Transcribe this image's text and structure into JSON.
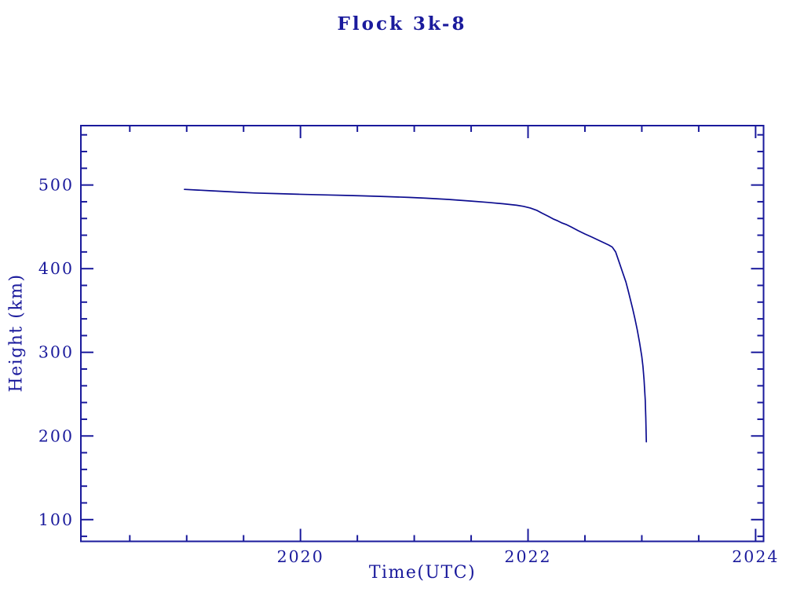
{
  "title": "Flock 3k-8",
  "colors": {
    "axis": "#1a1a9c",
    "text": "#1a1a9c",
    "line": "#0d0d90",
    "background": "#ffffff"
  },
  "chart_data": {
    "type": "line",
    "title": "Flock 3k-8",
    "xlabel": "Time(UTC)",
    "ylabel": "Height (km)",
    "xlim": [
      2018.07,
      2024.07
    ],
    "ylim": [
      74,
      571
    ],
    "x_major_ticks": [
      2020,
      2022,
      2024
    ],
    "x_minor_step": 0.5,
    "y_major_ticks": [
      100,
      200,
      300,
      400,
      500
    ],
    "y_minor_step": 20,
    "grid": false,
    "legend": "none",
    "axes_style": "box-with-mirrored-inward-ticks",
    "series": [
      {
        "name": "Flock 3k-8 orbital height",
        "points": [
          [
            2018.98,
            494.8
          ],
          [
            2019.1,
            493.9
          ],
          [
            2019.2,
            493.2
          ],
          [
            2019.3,
            492.5
          ],
          [
            2019.43,
            491.6
          ],
          [
            2019.6,
            490.5
          ],
          [
            2019.8,
            489.7
          ],
          [
            2019.98,
            489.0
          ],
          [
            2020.2,
            488.2
          ],
          [
            2020.4,
            487.6
          ],
          [
            2020.53,
            487.1
          ],
          [
            2020.7,
            486.4
          ],
          [
            2020.95,
            485.2
          ],
          [
            2021.1,
            484.3
          ],
          [
            2021.3,
            482.8
          ],
          [
            2021.5,
            480.8
          ],
          [
            2021.65,
            479.2
          ],
          [
            2021.78,
            477.6
          ],
          [
            2021.9,
            475.8
          ],
          [
            2021.96,
            474.5
          ],
          [
            2022.02,
            472.5
          ],
          [
            2022.08,
            469.5
          ],
          [
            2022.12,
            466.5
          ],
          [
            2022.18,
            462.5
          ],
          [
            2022.22,
            459.5
          ],
          [
            2022.26,
            457.2
          ],
          [
            2022.3,
            454.5
          ],
          [
            2022.34,
            452.5
          ],
          [
            2022.38,
            449.8
          ],
          [
            2022.44,
            445.5
          ],
          [
            2022.5,
            441.5
          ],
          [
            2022.56,
            437.8
          ],
          [
            2022.62,
            434.0
          ],
          [
            2022.67,
            430.8
          ],
          [
            2022.71,
            428.2
          ],
          [
            2022.74,
            425.8
          ],
          [
            2022.77,
            420.0
          ],
          [
            2022.8,
            408.0
          ],
          [
            2022.83,
            396.0
          ],
          [
            2022.86,
            384.0
          ],
          [
            2022.88,
            374.0
          ],
          [
            2022.9,
            363.0
          ],
          [
            2022.92,
            352.0
          ],
          [
            2022.94,
            340.0
          ],
          [
            2022.96,
            327.0
          ],
          [
            2022.98,
            312.0
          ],
          [
            2023.0,
            295.0
          ],
          [
            2023.01,
            283.0
          ],
          [
            2023.02,
            267.0
          ],
          [
            2023.03,
            243.0
          ],
          [
            2023.035,
            222.0
          ],
          [
            2023.04,
            193.0
          ]
        ]
      }
    ]
  }
}
